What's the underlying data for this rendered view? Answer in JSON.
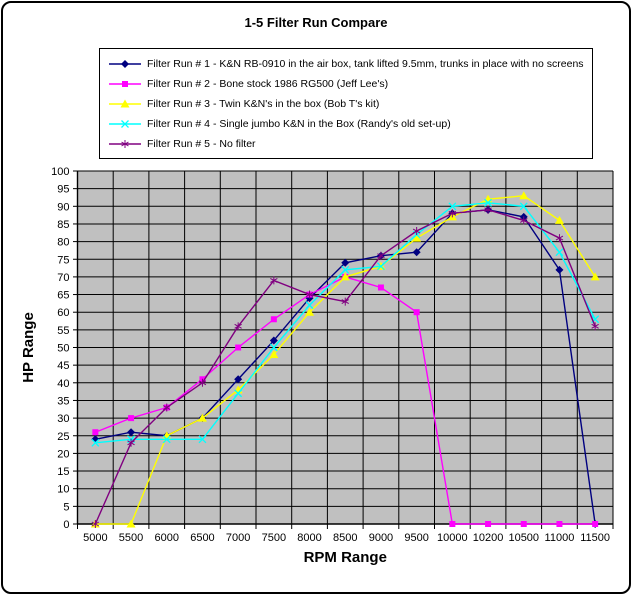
{
  "title": "1-5 Filter Run Compare",
  "chart_data": {
    "type": "line",
    "title": "1-5 Filter Run Compare",
    "xlabel": "RPM Range",
    "ylabel": "HP Range",
    "ylim": [
      0,
      100
    ],
    "y_tick_step": 5,
    "grid": true,
    "legend_position": "top",
    "plot_bg_color": "#c0c0c0",
    "grid_color": "#000000",
    "categories": [
      "5000",
      "5500",
      "6000",
      "6500",
      "7000",
      "7500",
      "8000",
      "8500",
      "9000",
      "9500",
      "10000",
      "10200",
      "10500",
      "11000",
      "11500"
    ],
    "series": [
      {
        "name": "Filter Run # 1 - K&N RB-0910 in the air box, tank lifted 9.5mm, trunks in place with no screens",
        "color": "#000080",
        "marker": "diamond",
        "values": [
          24,
          26,
          25,
          30,
          41,
          52,
          64,
          74,
          76,
          77,
          88,
          89,
          87,
          72,
          0
        ]
      },
      {
        "name": "Filter Run # 2 - Bone stock 1986 RG500 (Jeff Lee's)",
        "color": "#ff00ff",
        "marker": "square",
        "values": [
          26,
          30,
          33,
          41,
          50,
          58,
          65,
          70,
          67,
          60,
          0,
          0,
          0,
          0,
          0
        ]
      },
      {
        "name": "Filter Run # 3 - Twin K&N's in the box (Bob T's kit)",
        "color": "#ffff00",
        "marker": "triangle",
        "values": [
          0,
          0,
          25,
          30,
          38,
          48,
          60,
          70,
          73,
          81,
          87,
          92,
          93,
          86,
          70
        ]
      },
      {
        "name": "Filter Run # 4 - Single jumbo K&N in the Box (Randy's old set-up)",
        "color": "#00ffff",
        "marker": "x",
        "values": [
          23,
          24,
          24,
          24,
          37,
          50,
          62,
          72,
          73,
          82,
          90,
          91,
          90,
          77,
          58
        ]
      },
      {
        "name": "Filter Run # 5 - No filter",
        "color": "#800080",
        "marker": "star",
        "values": [
          0,
          23,
          33,
          40,
          56,
          69,
          65,
          63,
          76,
          83,
          88,
          89,
          86,
          81,
          56
        ]
      }
    ]
  }
}
